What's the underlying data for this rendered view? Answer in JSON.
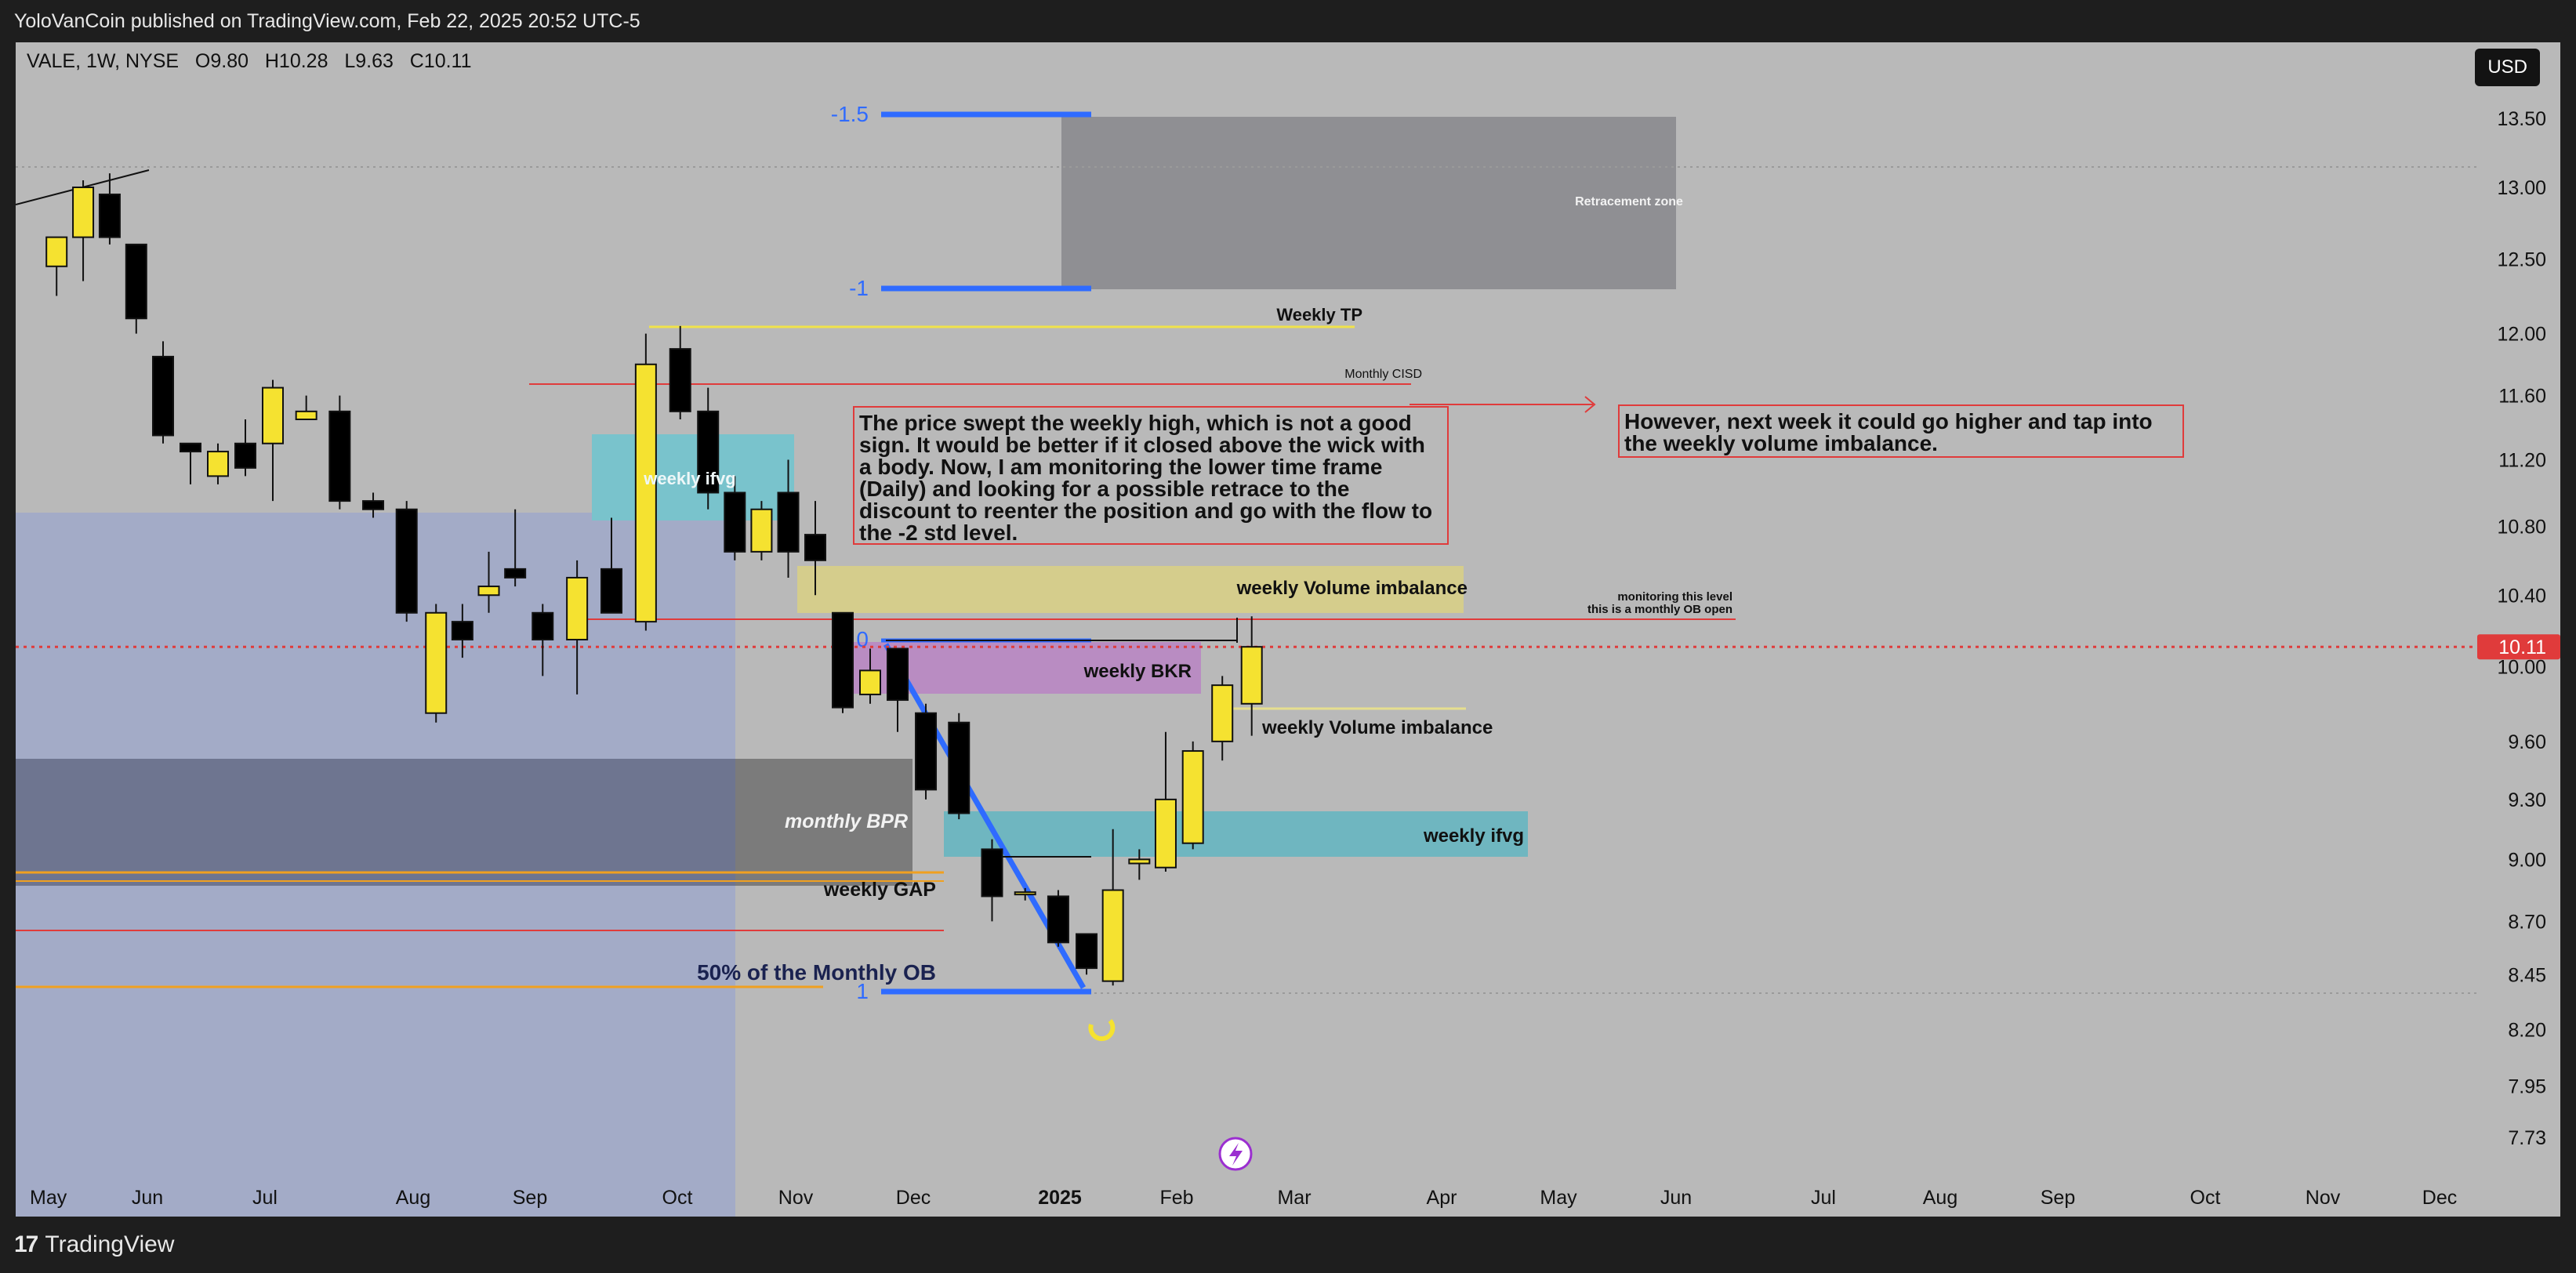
{
  "header": {
    "published_text": "YoloVanCoin published on TradingView.com, Feb 22, 2025 20:52 UTC-5"
  },
  "legend": {
    "symbol": "VALE, 1W, NYSE",
    "open": "O9.80",
    "high": "H10.28",
    "low": "L9.63",
    "close": "C10.11"
  },
  "toolbar": {
    "currency_label": "USD"
  },
  "footer": {
    "brand_mark": "17",
    "brand_name": "TradingView"
  },
  "colors": {
    "bull": "#f5e230",
    "bear": "#000000",
    "background": "#b9b9b9",
    "price_line": "#e03b3b",
    "fib_blue": "#2f6bff"
  },
  "chart_data": {
    "type": "candlestick",
    "symbol": "VALE",
    "timeframe": "1W",
    "exchange": "NYSE",
    "current_price": "10.11",
    "y_axis": {
      "scale": "log",
      "ylim": [
        7.55,
        13.85
      ],
      "ticks": [
        "13.50",
        "13.00",
        "12.50",
        "12.00",
        "11.60",
        "11.20",
        "10.80",
        "10.40",
        "10.00",
        "9.60",
        "9.30",
        "9.00",
        "8.70",
        "8.45",
        "8.20",
        "7.95",
        "7.73"
      ]
    },
    "x_axis": {
      "ticks": [
        {
          "label": "May",
          "date": "2024-05-01"
        },
        {
          "label": "Jun",
          "date": "2024-06-01"
        },
        {
          "label": "Jul",
          "date": "2024-07-01"
        },
        {
          "label": "Aug",
          "date": "2024-08-01"
        },
        {
          "label": "Sep",
          "date": "2024-09-01"
        },
        {
          "label": "Oct",
          "date": "2024-10-01"
        },
        {
          "label": "Nov",
          "date": "2024-11-01"
        },
        {
          "label": "Dec",
          "date": "2024-12-01"
        },
        {
          "label": "2025",
          "date": "2025-01-01",
          "bold": true
        },
        {
          "label": "Feb",
          "date": "2025-02-01"
        },
        {
          "label": "Mar",
          "date": "2025-03-01"
        },
        {
          "label": "Apr",
          "date": "2025-04-01"
        },
        {
          "label": "May",
          "date": "2025-05-01"
        },
        {
          "label": "Jun",
          "date": "2025-06-01"
        },
        {
          "label": "Jul",
          "date": "2025-07-01"
        },
        {
          "label": "Aug",
          "date": "2025-08-01"
        },
        {
          "label": "Sep",
          "date": "2025-09-01"
        },
        {
          "label": "Oct",
          "date": "2025-10-01"
        },
        {
          "label": "Nov",
          "date": "2025-11-01"
        },
        {
          "label": "Dec",
          "date": "2025-12-01"
        }
      ]
    },
    "candles": [
      {
        "d": "2024-05-06",
        "o": 12.45,
        "h": 12.65,
        "l": 12.25,
        "c": 12.65
      },
      {
        "d": "2024-05-13",
        "o": 12.65,
        "h": 13.05,
        "l": 12.35,
        "c": 13.0
      },
      {
        "d": "2024-05-20",
        "o": 12.95,
        "h": 13.1,
        "l": 12.6,
        "c": 12.65
      },
      {
        "d": "2024-05-27",
        "o": 12.6,
        "h": 12.6,
        "l": 12.0,
        "c": 12.1
      },
      {
        "d": "2024-06-03",
        "o": 11.85,
        "h": 11.95,
        "l": 11.3,
        "c": 11.35
      },
      {
        "d": "2024-06-10",
        "o": 11.3,
        "h": 11.3,
        "l": 11.05,
        "c": 11.25
      },
      {
        "d": "2024-06-17",
        "o": 11.1,
        "h": 11.3,
        "l": 11.05,
        "c": 11.25
      },
      {
        "d": "2024-06-24",
        "o": 11.3,
        "h": 11.45,
        "l": 11.1,
        "c": 11.15
      },
      {
        "d": "2024-07-01",
        "o": 11.3,
        "h": 11.7,
        "l": 10.95,
        "c": 11.65
      },
      {
        "d": "2024-07-08",
        "o": 11.45,
        "h": 11.6,
        "l": 11.45,
        "c": 11.5
      },
      {
        "d": "2024-07-15",
        "o": 11.5,
        "h": 11.6,
        "l": 10.9,
        "c": 10.95
      },
      {
        "d": "2024-07-22",
        "o": 10.95,
        "h": 11.0,
        "l": 10.85,
        "c": 10.9
      },
      {
        "d": "2024-07-29",
        "o": 10.9,
        "h": 10.95,
        "l": 10.25,
        "c": 10.3
      },
      {
        "d": "2024-08-05",
        "o": 9.75,
        "h": 10.35,
        "l": 9.7,
        "c": 10.3
      },
      {
        "d": "2024-08-12",
        "o": 10.25,
        "h": 10.35,
        "l": 10.05,
        "c": 10.15
      },
      {
        "d": "2024-08-19",
        "o": 10.4,
        "h": 10.65,
        "l": 10.3,
        "c": 10.45
      },
      {
        "d": "2024-08-26",
        "o": 10.55,
        "h": 10.9,
        "l": 10.45,
        "c": 10.5
      },
      {
        "d": "2024-09-02",
        "o": 10.3,
        "h": 10.35,
        "l": 9.95,
        "c": 10.15
      },
      {
        "d": "2024-09-09",
        "o": 10.15,
        "h": 10.6,
        "l": 9.85,
        "c": 10.5
      },
      {
        "d": "2024-09-16",
        "o": 10.55,
        "h": 10.85,
        "l": 10.3,
        "c": 10.3
      },
      {
        "d": "2024-09-23",
        "o": 10.25,
        "h": 12.0,
        "l": 10.2,
        "c": 11.8
      },
      {
        "d": "2024-09-30",
        "o": 11.9,
        "h": 12.05,
        "l": 11.45,
        "c": 11.5
      },
      {
        "d": "2024-10-07",
        "o": 11.5,
        "h": 11.65,
        "l": 10.9,
        "c": 11.0
      },
      {
        "d": "2024-10-14",
        "o": 11.0,
        "h": 11.1,
        "l": 10.6,
        "c": 10.65
      },
      {
        "d": "2024-10-21",
        "o": 10.65,
        "h": 10.95,
        "l": 10.6,
        "c": 10.9
      },
      {
        "d": "2024-10-28",
        "o": 11.0,
        "h": 11.2,
        "l": 10.5,
        "c": 10.65
      },
      {
        "d": "2024-11-04",
        "o": 10.75,
        "h": 10.95,
        "l": 10.4,
        "c": 10.6
      },
      {
        "d": "2024-11-11",
        "o": 10.3,
        "h": 10.3,
        "l": 9.75,
        "c": 9.78
      },
      {
        "d": "2024-11-18",
        "o": 9.85,
        "h": 10.1,
        "l": 9.8,
        "c": 9.98
      },
      {
        "d": "2024-11-25",
        "o": 10.1,
        "h": 10.1,
        "l": 9.65,
        "c": 9.82
      },
      {
        "d": "2024-12-02",
        "o": 9.75,
        "h": 9.8,
        "l": 9.3,
        "c": 9.35
      },
      {
        "d": "2024-12-09",
        "o": 9.7,
        "h": 9.75,
        "l": 9.2,
        "c": 9.23
      },
      {
        "d": "2024-12-16",
        "o": 9.05,
        "h": 9.1,
        "l": 8.7,
        "c": 8.82
      },
      {
        "d": "2024-12-23",
        "o": 8.83,
        "h": 8.86,
        "l": 8.8,
        "c": 8.84
      },
      {
        "d": "2024-12-30",
        "o": 8.82,
        "h": 8.85,
        "l": 8.58,
        "c": 8.6
      },
      {
        "d": "2025-01-06",
        "o": 8.64,
        "h": 8.64,
        "l": 8.45,
        "c": 8.48
      },
      {
        "d": "2025-01-13",
        "o": 8.42,
        "h": 9.15,
        "l": 8.4,
        "c": 8.85
      },
      {
        "d": "2025-01-20",
        "o": 8.98,
        "h": 9.05,
        "l": 8.9,
        "c": 9.0
      },
      {
        "d": "2025-01-27",
        "o": 8.96,
        "h": 9.65,
        "l": 8.94,
        "c": 9.3
      },
      {
        "d": "2025-02-03",
        "o": 9.08,
        "h": 9.6,
        "l": 9.05,
        "c": 9.55
      },
      {
        "d": "2025-02-10",
        "o": 9.6,
        "h": 9.95,
        "l": 9.5,
        "c": 9.9
      },
      {
        "d": "2025-02-17",
        "o": 9.8,
        "h": 10.28,
        "l": 9.63,
        "c": 10.11
      }
    ],
    "annotations": {
      "retracement_zone": "Retracement zone",
      "fib_neg15": "-1.5",
      "fib_neg1": "-1",
      "fib_zero": "0",
      "fib_one": "1",
      "weekly_tp": "Weekly TP",
      "monthly_cisd": "Monthly CISD",
      "weekly_ifvg_top": "weekly ifvg",
      "weekly_volume_imbalance_top": "weekly Volume imbalance",
      "monitoring_line1": "monitoring this level",
      "monitoring_line2": "this is a monthly OB open",
      "weekly_bkr": "weekly BKR",
      "weekly_volume_imbalance_bottom": "weekly Volume imbalance",
      "monthly_bpr": "monthly BPR",
      "weekly_ifvg_bottom": "weekly ifvg",
      "weekly_gap": "weekly GAP",
      "monthly_ob_50": "50% of the Monthly OB",
      "note_left": "The price swept the weekly high, which is not a good sign. It would be better if it closed above the wick with a body. Now, I am monitoring the lower time frame (Daily) and looking for a possible retrace to the discount to reenter the position and go with the flow to the -2 std level.",
      "note_right": "However, next week it could go higher and tap into the weekly volume imbalance."
    }
  }
}
